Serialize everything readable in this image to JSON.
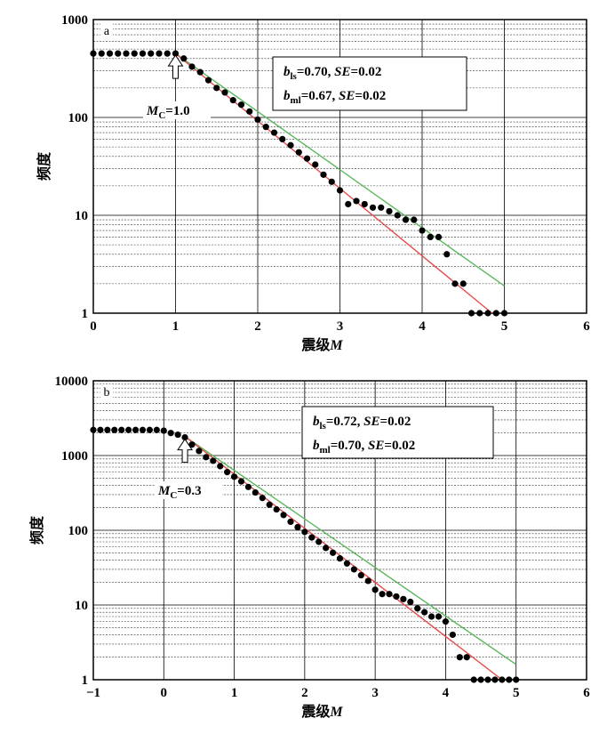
{
  "chart_data": [
    {
      "type": "scatter",
      "panel": "a",
      "xlabel": "震级M",
      "ylabel": "频度",
      "xlim": [
        0,
        6
      ],
      "ylim": [
        1,
        1000
      ],
      "yscale": "log",
      "xticks": [
        0,
        1,
        2,
        3,
        4,
        5,
        6
      ],
      "yticks": [
        1,
        10,
        100,
        1000
      ],
      "grid": true,
      "stats": [
        {
          "b_sub": "ls",
          "b_value": "0.70",
          "se": "0.02"
        },
        {
          "b_sub": "ml",
          "b_value": "0.67",
          "se": "0.02"
        }
      ],
      "mc": {
        "value": 1.0,
        "label": "1.0"
      },
      "series": [
        {
          "kind": "points",
          "color": "#000000",
          "x": [
            0.0,
            0.1,
            0.2,
            0.3,
            0.4,
            0.5,
            0.6,
            0.7,
            0.8,
            0.9,
            1.0,
            1.1,
            1.2,
            1.3,
            1.4,
            1.5,
            1.6,
            1.7,
            1.8,
            1.9,
            2.0,
            2.1,
            2.2,
            2.3,
            2.4,
            2.5,
            2.6,
            2.7,
            2.8,
            2.9,
            3.0,
            3.1,
            3.2,
            3.3,
            3.4,
            3.5,
            3.6,
            3.7,
            3.8,
            3.9,
            4.0,
            4.1,
            4.2,
            4.3,
            4.4,
            4.5,
            4.6,
            4.7,
            4.8,
            4.9,
            5.0
          ],
          "y": [
            450,
            450,
            450,
            450,
            450,
            450,
            450,
            450,
            450,
            450,
            450,
            400,
            330,
            290,
            240,
            200,
            180,
            150,
            135,
            115,
            95,
            80,
            70,
            60,
            52,
            44,
            38,
            33,
            26,
            22,
            18,
            13,
            14,
            13,
            12,
            12,
            11,
            10,
            9,
            9,
            7,
            6,
            6,
            4,
            2,
            2,
            1,
            1,
            1,
            1,
            1
          ]
        },
        {
          "kind": "line",
          "color": "#5cb85c",
          "x": [
            1.0,
            5.0
          ],
          "y": [
            450,
            1.9
          ]
        },
        {
          "kind": "line",
          "color": "#e74c4c",
          "x": [
            1.0,
            4.85
          ],
          "y": [
            450,
            1.0
          ]
        }
      ]
    },
    {
      "type": "scatter",
      "panel": "b",
      "xlabel": "震级M",
      "ylabel": "频度",
      "xlim": [
        -1,
        6
      ],
      "ylim": [
        1,
        10000
      ],
      "yscale": "log",
      "xticks": [
        -1,
        0,
        1,
        2,
        3,
        4,
        5,
        6
      ],
      "yticks": [
        1,
        10,
        100,
        1000,
        10000
      ],
      "grid": true,
      "stats": [
        {
          "b_sub": "ls",
          "b_value": "0.72",
          "se": "0.02"
        },
        {
          "b_sub": "ml",
          "b_value": "0.70",
          "se": "0.02"
        }
      ],
      "mc": {
        "value": 0.3,
        "label": "0.3"
      },
      "series": [
        {
          "kind": "points",
          "color": "#000000",
          "x": [
            -1.0,
            -0.9,
            -0.8,
            -0.7,
            -0.6,
            -0.5,
            -0.4,
            -0.3,
            -0.2,
            -0.1,
            0.0,
            0.1,
            0.2,
            0.3,
            0.4,
            0.5,
            0.6,
            0.7,
            0.8,
            0.9,
            1.0,
            1.1,
            1.2,
            1.3,
            1.4,
            1.5,
            1.6,
            1.7,
            1.8,
            1.9,
            2.0,
            2.1,
            2.2,
            2.3,
            2.4,
            2.5,
            2.6,
            2.7,
            2.8,
            2.9,
            3.0,
            3.1,
            3.2,
            3.3,
            3.4,
            3.5,
            3.6,
            3.7,
            3.8,
            3.9,
            4.0,
            4.1,
            4.2,
            4.3,
            4.4,
            4.5,
            4.6,
            4.7,
            4.8,
            4.9,
            5.0
          ],
          "y": [
            2200,
            2200,
            2200,
            2200,
            2200,
            2200,
            2200,
            2200,
            2200,
            2200,
            2150,
            2000,
            1900,
            1750,
            1400,
            1150,
            950,
            850,
            720,
            600,
            520,
            450,
            380,
            320,
            270,
            220,
            190,
            160,
            130,
            110,
            95,
            80,
            70,
            58,
            50,
            42,
            36,
            30,
            25,
            21,
            16,
            14,
            14,
            13,
            12,
            11,
            9,
            8,
            7,
            7,
            6,
            4,
            2,
            2,
            1,
            1,
            1,
            1,
            1,
            1,
            1
          ]
        },
        {
          "kind": "line",
          "color": "#5cb85c",
          "x": [
            0.3,
            5.0
          ],
          "y": [
            1800,
            1.6
          ]
        },
        {
          "kind": "line",
          "color": "#e74c4c",
          "x": [
            0.3,
            4.8
          ],
          "y": [
            1800,
            1.0
          ]
        }
      ]
    }
  ]
}
